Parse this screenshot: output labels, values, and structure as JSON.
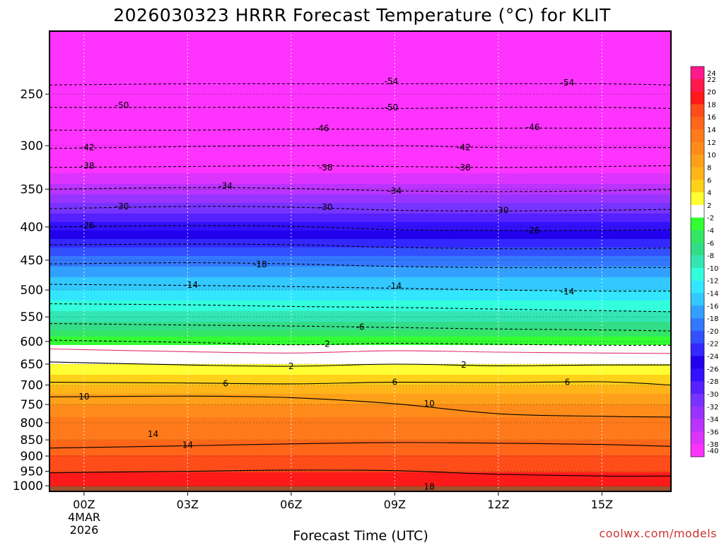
{
  "chart_data": {
    "type": "heatmap",
    "title": "2026030323 HRRR Forecast Temperature (°C) for KLIT",
    "xlabel": "Forecast Time (UTC)",
    "ylabel": "",
    "credit": "coolwx.com/models",
    "x_ticks": [
      {
        "hour": 0,
        "label": "00Z"
      },
      {
        "hour": 3,
        "label": "03Z"
      },
      {
        "hour": 6,
        "label": "06Z"
      },
      {
        "hour": 9,
        "label": "09Z"
      },
      {
        "hour": 12,
        "label": "12Z"
      },
      {
        "hour": 15,
        "label": "15Z"
      }
    ],
    "x_date_lines": [
      "4MAR",
      "2026"
    ],
    "xlim": [
      -1,
      17
    ],
    "y_scale": "log",
    "y_reversed": true,
    "ylim": [
      1020,
      200
    ],
    "y_ticks": [
      250,
      300,
      350,
      400,
      450,
      500,
      550,
      600,
      650,
      700,
      750,
      800,
      850,
      900,
      950,
      1000
    ],
    "grid": true,
    "surface_pressure_hpa": 1002,
    "colorbar": {
      "placement": "right",
      "levels": [
        24,
        22,
        20,
        18,
        16,
        14,
        12,
        10,
        8,
        6,
        4,
        2,
        -2,
        -4,
        -6,
        -8,
        -10,
        -12,
        -14,
        -16,
        -18,
        -20,
        -22,
        -24,
        -26,
        -28,
        -30,
        -32,
        -34,
        -36,
        -38,
        -40
      ],
      "colors": [
        "#ff1a8c",
        "#ff1a4d",
        "#ff1a1a",
        "#ff4d1a",
        "#ff661a",
        "#ff7a1a",
        "#ff8c1a",
        "#ffa01a",
        "#ffb41a",
        "#ffd21a",
        "#ffff33",
        "#ffffff",
        "#33ff33",
        "#33e666",
        "#33dd88",
        "#33e6b4",
        "#33ffdd",
        "#33e6ff",
        "#33c8ff",
        "#33a0ff",
        "#3378ff",
        "#3350ff",
        "#3328ff",
        "#2200ee",
        "#3311ff",
        "#5522ff",
        "#7733ff",
        "#9933ff",
        "#bb33ff",
        "#dd33ff",
        "#ff33ff"
      ]
    },
    "profile_pressure_hpa": [
      200,
      250,
      300,
      350,
      400,
      450,
      500,
      550,
      600,
      620,
      650,
      700,
      750,
      800,
      850,
      900,
      950,
      1000
    ],
    "profile_temperature_c": [
      -57,
      -52,
      -43,
      -35,
      -27,
      -19,
      -14,
      -9,
      -3,
      0,
      2,
      6,
      10,
      13,
      14,
      16,
      18,
      19
    ],
    "contours": [
      {
        "value": -54,
        "dashed": true,
        "points": [
          [
            -1,
            242
          ],
          [
            3,
            241
          ],
          [
            6,
            241
          ],
          [
            9,
            241
          ],
          [
            12,
            241
          ],
          [
            15,
            241
          ],
          [
            17,
            242
          ]
        ]
      },
      {
        "value": -50,
        "dashed": true,
        "points": [
          [
            -1,
            262
          ],
          [
            3,
            262
          ],
          [
            6,
            262
          ],
          [
            9,
            263
          ],
          [
            12,
            262
          ],
          [
            15,
            262
          ],
          [
            17,
            263
          ]
        ]
      },
      {
        "value": -46,
        "dashed": true,
        "points": [
          [
            -1,
            284
          ],
          [
            3,
            284
          ],
          [
            6,
            283
          ],
          [
            9,
            283
          ],
          [
            12,
            282
          ],
          [
            15,
            282
          ],
          [
            17,
            282
          ]
        ]
      },
      {
        "value": -42,
        "dashed": true,
        "points": [
          [
            -1,
            303
          ],
          [
            3,
            301
          ],
          [
            6,
            300
          ],
          [
            9,
            300
          ],
          [
            12,
            302
          ],
          [
            15,
            302
          ],
          [
            17,
            302
          ]
        ]
      },
      {
        "value": -38,
        "dashed": true,
        "points": [
          [
            -1,
            324
          ],
          [
            3,
            323
          ],
          [
            6,
            322
          ],
          [
            9,
            323
          ],
          [
            12,
            324
          ],
          [
            15,
            323
          ],
          [
            17,
            322
          ]
        ]
      },
      {
        "value": -34,
        "dashed": true,
        "points": [
          [
            -1,
            350
          ],
          [
            3,
            348
          ],
          [
            6,
            349
          ],
          [
            9,
            352
          ],
          [
            12,
            353
          ],
          [
            15,
            352
          ],
          [
            17,
            350
          ]
        ]
      },
      {
        "value": -30,
        "dashed": true,
        "points": [
          [
            -1,
            375
          ],
          [
            3,
            372
          ],
          [
            6,
            373
          ],
          [
            9,
            377
          ],
          [
            12,
            378
          ],
          [
            15,
            377
          ],
          [
            17,
            376
          ]
        ]
      },
      {
        "value": -26,
        "dashed": true,
        "points": [
          [
            -1,
            400
          ],
          [
            3,
            398
          ],
          [
            6,
            399
          ],
          [
            9,
            404
          ],
          [
            12,
            405
          ],
          [
            15,
            405
          ],
          [
            17,
            404
          ]
        ]
      },
      {
        "value": -22,
        "dashed": true,
        "points": [
          [
            -1,
            426
          ],
          [
            3,
            425
          ],
          [
            6,
            426
          ],
          [
            9,
            430
          ],
          [
            12,
            432
          ],
          [
            15,
            432
          ],
          [
            17,
            431
          ]
        ]
      },
      {
        "value": -18,
        "dashed": true,
        "points": [
          [
            -1,
            456
          ],
          [
            3,
            454
          ],
          [
            6,
            456
          ],
          [
            9,
            460
          ],
          [
            12,
            462
          ],
          [
            15,
            462
          ],
          [
            17,
            462
          ]
        ]
      },
      {
        "value": -14,
        "dashed": true,
        "points": [
          [
            -1,
            490
          ],
          [
            3,
            492
          ],
          [
            6,
            494
          ],
          [
            9,
            497
          ],
          [
            12,
            500
          ],
          [
            15,
            502
          ],
          [
            17,
            502
          ]
        ]
      },
      {
        "value": -10,
        "dashed": true,
        "points": [
          [
            -1,
            525
          ],
          [
            3,
            527
          ],
          [
            6,
            530
          ],
          [
            9,
            532
          ],
          [
            12,
            535
          ],
          [
            15,
            538
          ],
          [
            17,
            540
          ]
        ]
      },
      {
        "value": -6,
        "dashed": true,
        "points": [
          [
            -1,
            563
          ],
          [
            3,
            566
          ],
          [
            6,
            568
          ],
          [
            9,
            571
          ],
          [
            12,
            574
          ],
          [
            15,
            576
          ],
          [
            17,
            578
          ]
        ]
      },
      {
        "value": -2,
        "dashed": true,
        "points": [
          [
            -1,
            597
          ],
          [
            3,
            602
          ],
          [
            6,
            607
          ],
          [
            9,
            604
          ],
          [
            12,
            606
          ],
          [
            15,
            608
          ],
          [
            17,
            608
          ]
        ]
      },
      {
        "value": 0,
        "dashed": false,
        "color": "#e0307a",
        "points": [
          [
            -1,
            616
          ],
          [
            3,
            622
          ],
          [
            6,
            625
          ],
          [
            9,
            620
          ],
          [
            12,
            623
          ],
          [
            15,
            625
          ],
          [
            17,
            626
          ]
        ]
      },
      {
        "value": 2,
        "dashed": false,
        "points": [
          [
            -1,
            645
          ],
          [
            3,
            652
          ],
          [
            6,
            655
          ],
          [
            9,
            650
          ],
          [
            12,
            654
          ],
          [
            15,
            652
          ],
          [
            17,
            652
          ]
        ]
      },
      {
        "value": 6,
        "dashed": false,
        "points": [
          [
            -1,
            693
          ],
          [
            3,
            695
          ],
          [
            6,
            697
          ],
          [
            9,
            693
          ],
          [
            12,
            694
          ],
          [
            15,
            692
          ],
          [
            17,
            700
          ]
        ]
      },
      {
        "value": 10,
        "dashed": false,
        "points": [
          [
            -1,
            730
          ],
          [
            3,
            728
          ],
          [
            6,
            732
          ],
          [
            9,
            748
          ],
          [
            12,
            775
          ],
          [
            15,
            782
          ],
          [
            17,
            784
          ]
        ]
      },
      {
        "value": 14,
        "dashed": false,
        "points": [
          [
            -1,
            875
          ],
          [
            3,
            868
          ],
          [
            6,
            862
          ],
          [
            9,
            858
          ],
          [
            12,
            860
          ],
          [
            15,
            864
          ],
          [
            17,
            870
          ]
        ]
      },
      {
        "value": 18,
        "dashed": false,
        "points": [
          [
            -1,
            955
          ],
          [
            3,
            950
          ],
          [
            6,
            946
          ],
          [
            9,
            948
          ],
          [
            12,
            960
          ],
          [
            15,
            966
          ],
          [
            17,
            966
          ]
        ]
      }
    ],
    "contour_labels": [
      {
        "value": -54,
        "hour": 8.9,
        "p": 239
      },
      {
        "value": -54,
        "hour": 14.0,
        "p": 240
      },
      {
        "value": -50,
        "hour": 1.1,
        "p": 260
      },
      {
        "value": -50,
        "hour": 8.9,
        "p": 262
      },
      {
        "value": -46,
        "hour": 6.9,
        "p": 282
      },
      {
        "value": -46,
        "hour": 13.0,
        "p": 281
      },
      {
        "value": -42,
        "hour": 0.1,
        "p": 302
      },
      {
        "value": -42,
        "hour": 11.0,
        "p": 302
      },
      {
        "value": -38,
        "hour": 0.1,
        "p": 322
      },
      {
        "value": -38,
        "hour": 7.0,
        "p": 324
      },
      {
        "value": -38,
        "hour": 11.0,
        "p": 324
      },
      {
        "value": -34,
        "hour": 4.1,
        "p": 346
      },
      {
        "value": -34,
        "hour": 9.0,
        "p": 352
      },
      {
        "value": -30,
        "hour": 1.1,
        "p": 372
      },
      {
        "value": -30,
        "hour": 7.0,
        "p": 373
      },
      {
        "value": -30,
        "hour": 12.1,
        "p": 377
      },
      {
        "value": -26,
        "hour": 0.1,
        "p": 398
      },
      {
        "value": -26,
        "hour": 13.0,
        "p": 405
      },
      {
        "value": -18,
        "hour": 5.1,
        "p": 457
      },
      {
        "value": -14,
        "hour": 3.1,
        "p": 491
      },
      {
        "value": -14,
        "hour": 9.0,
        "p": 493
      },
      {
        "value": -14,
        "hour": 14.0,
        "p": 503
      },
      {
        "value": -6,
        "hour": 8.0,
        "p": 570
      },
      {
        "value": -2,
        "hour": 7.0,
        "p": 605
      },
      {
        "value": 2,
        "hour": 6.0,
        "p": 655
      },
      {
        "value": 2,
        "hour": 11.0,
        "p": 652
      },
      {
        "value": 6,
        "hour": 4.1,
        "p": 696
      },
      {
        "value": 6,
        "hour": 9.0,
        "p": 693
      },
      {
        "value": 6,
        "hour": 14.0,
        "p": 693
      },
      {
        "value": 10,
        "hour": 0.0,
        "p": 729
      },
      {
        "value": 10,
        "hour": 10.0,
        "p": 748
      },
      {
        "value": 14,
        "hour": 2.0,
        "p": 833
      },
      {
        "value": 14,
        "hour": 3.0,
        "p": 866
      },
      {
        "value": 18,
        "hour": 10.0,
        "p": 1003
      }
    ]
  }
}
